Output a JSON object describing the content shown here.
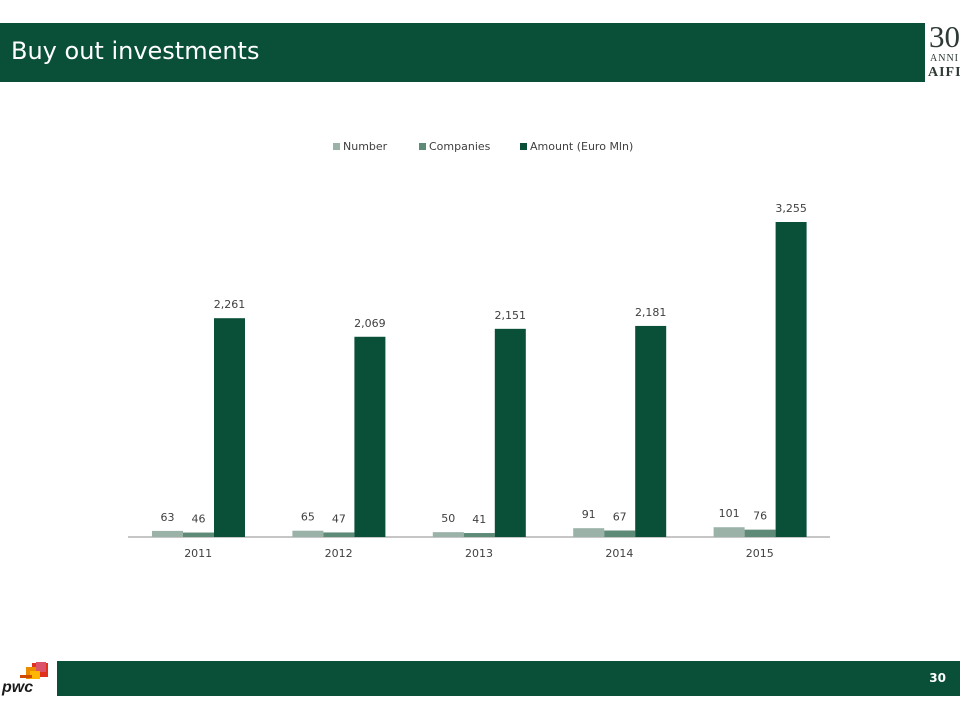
{
  "header": {
    "title": "Buy out investments"
  },
  "logo": {
    "number": "30",
    "subtitle": "ANNI",
    "brand": "AIFI"
  },
  "footer": {
    "page_number": "30",
    "brand": "pwc"
  },
  "colors": {
    "header_green": "#0a5038",
    "number": "#9ab2a8",
    "companies": "#5e8a78",
    "amount": "#0a5038"
  },
  "chart_data": {
    "type": "bar",
    "categories": [
      "2011",
      "2012",
      "2013",
      "2014",
      "2015"
    ],
    "series": [
      {
        "name": "Number",
        "values": [
          63,
          65,
          50,
          91,
          101
        ],
        "labels": [
          "63",
          "65",
          "50",
          "91",
          "101"
        ]
      },
      {
        "name": "Companies",
        "values": [
          46,
          47,
          41,
          67,
          76
        ],
        "labels": [
          "46",
          "47",
          "41",
          "67",
          "76"
        ]
      },
      {
        "name": "Amount (Euro Mln)",
        "values": [
          2261,
          2069,
          2151,
          2181,
          3255
        ],
        "labels": [
          "2,261",
          "2,069",
          "2,151",
          "2,181",
          "3,255"
        ]
      }
    ],
    "legend_position": "top",
    "grid": false,
    "ylim": [
      0,
      3400
    ]
  }
}
